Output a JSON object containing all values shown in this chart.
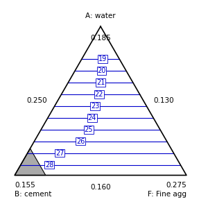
{
  "title_top": "A: water",
  "val_top": "0.185",
  "label_bottom_left": "B: cement",
  "val_bottom_left": "0.155",
  "label_bottom_right": "F: Fine agg",
  "val_bottom_right": "0.275",
  "val_mid_left": "0.250",
  "val_mid_right": "0.130",
  "val_bottom_mid": "0.160",
  "contour_levels": [
    19,
    20,
    21,
    22,
    23,
    24,
    25,
    26,
    27,
    28
  ],
  "contour_color": "#0000cc",
  "triangle_color": "#000000",
  "gray_triangle_color": "#aaaaaa",
  "background_color": "#ffffff",
  "label_fontsize": 7,
  "axis_label_fontsize": 7.5
}
